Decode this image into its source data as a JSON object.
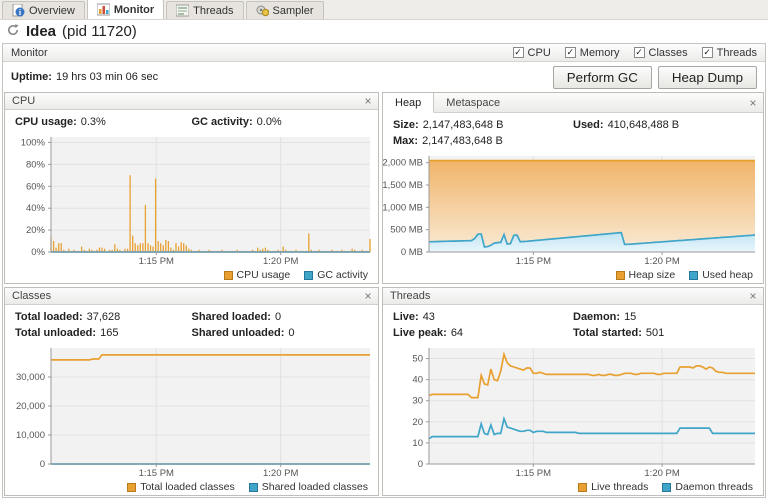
{
  "glyphs": {
    "close": "×",
    "check": "✓"
  },
  "tabs": [
    {
      "label": "Overview",
      "active": false
    },
    {
      "label": "Monitor",
      "active": true
    },
    {
      "label": "Threads",
      "active": false
    },
    {
      "label": "Sampler",
      "active": false
    }
  ],
  "title": {
    "name": "Idea",
    "pid": "(pid 11720)"
  },
  "section": {
    "title": "Monitor",
    "checkboxes": [
      {
        "label": "CPU",
        "checked": true
      },
      {
        "label": "Memory",
        "checked": true
      },
      {
        "label": "Classes",
        "checked": true
      },
      {
        "label": "Threads",
        "checked": true
      }
    ]
  },
  "uptime": {
    "label": "Uptime:",
    "value": "19 hrs 03 min 06 sec"
  },
  "buttons": {
    "perform_gc": "Perform GC",
    "heap_dump": "Heap Dump"
  },
  "colors": {
    "orange": "#E8A030",
    "orange_border": "#B77A1E",
    "blue": "#3FA5C9",
    "blue_border": "#27769B"
  },
  "panels": {
    "cpu": {
      "title": "CPU",
      "stats": [
        {
          "label": "CPU usage:",
          "value": "0.3%"
        },
        {
          "label": "GC activity:",
          "value": "0.0%"
        }
      ],
      "chart": {
        "type": "bar",
        "ylim": [
          0,
          105
        ],
        "yticks": [
          {
            "v": 0,
            "label": "0%"
          },
          {
            "v": 20,
            "label": "20%"
          },
          {
            "v": 40,
            "label": "40%"
          },
          {
            "v": 60,
            "label": "60%"
          },
          {
            "v": 80,
            "label": "80%"
          },
          {
            "v": 100,
            "label": "100%"
          }
        ],
        "xticks": [
          {
            "pos": 0.33,
            "label": "1:15 PM"
          },
          {
            "pos": 0.72,
            "label": "1:20 PM"
          }
        ],
        "series": [
          {
            "name": "CPU usage",
            "type": "bars",
            "color": "#E8A030",
            "values": [
              14,
              10,
              4,
              8,
              8,
              2,
              1,
              3,
              1,
              2,
              1,
              1,
              5,
              2,
              1,
              3,
              2,
              1,
              2,
              4,
              4,
              3,
              1,
              2,
              2,
              7,
              3,
              2,
              1,
              3,
              3,
              70,
              15,
              8,
              6,
              8,
              8,
              43,
              8,
              6,
              5,
              67,
              10,
              8,
              6,
              11,
              10,
              4,
              2,
              8,
              5,
              9,
              8,
              6,
              3,
              2,
              1,
              1,
              2,
              1,
              1,
              1,
              2,
              1,
              1,
              1,
              1,
              2,
              1,
              1,
              1,
              1,
              1,
              2,
              1,
              1,
              1,
              1,
              1,
              2,
              1,
              4,
              2,
              3,
              4,
              2,
              1,
              1,
              1,
              2,
              1,
              5,
              2,
              1,
              1,
              1,
              2,
              1,
              1,
              1,
              1,
              17,
              2,
              1,
              1,
              2,
              1,
              1,
              1,
              1,
              2,
              1,
              1,
              1,
              2,
              1,
              1,
              1,
              3,
              2,
              1,
              1,
              2,
              1,
              1,
              12
            ]
          },
          {
            "name": "GC activity",
            "type": "line",
            "color": "#3FA5C9",
            "const_value": 0,
            "n": 2
          }
        ],
        "legend": [
          {
            "label": "CPU usage",
            "color": "#E8A030",
            "border": "#B77A1E"
          },
          {
            "label": "GC activity",
            "color": "#3FA5C9",
            "border": "#27769B"
          }
        ]
      }
    },
    "heap": {
      "tabs": [
        "Heap",
        "Metaspace"
      ],
      "stats": [
        {
          "label": "Size:",
          "value": "2,147,483,648 B"
        },
        {
          "label": "Used:",
          "value": "410,648,488 B"
        },
        {
          "label": "Max:",
          "value": "2,147,483,648 B"
        },
        {
          "label": "",
          "value": ""
        }
      ],
      "chart": {
        "type": "area",
        "ylim": [
          0,
          2150
        ],
        "yticks": [
          {
            "v": 0,
            "label": "0 MB"
          },
          {
            "v": 500,
            "label": "500 MB"
          },
          {
            "v": 1000,
            "label": "1,000 MB"
          },
          {
            "v": 1500,
            "label": "1,500 MB"
          },
          {
            "v": 2000,
            "label": "2,000 MB"
          }
        ],
        "xticks": [
          {
            "pos": 0.32,
            "label": "1:15 PM"
          },
          {
            "pos": 0.715,
            "label": "1:20 PM"
          }
        ],
        "series": [
          {
            "name": "Heap size",
            "type": "area",
            "color": "#E8A030",
            "fill": [
              "#F0B469",
              "#FAEBD7"
            ],
            "const_value": 2048,
            "n": 2
          },
          {
            "name": "Used heap",
            "type": "area",
            "color": "#3FA5C9",
            "fill": [
              "#C2E4F2",
              "#EAF6FC"
            ],
            "values": [
              228,
              231,
              233,
              235,
              237,
              239,
              241,
              243,
              245,
              247,
              249,
              251,
              253,
              256,
              300,
              398,
              400,
              112,
              120,
              150,
              200,
              210,
              215,
              390,
              180,
              188,
              375,
              378,
              230,
              235,
              240,
              247,
              254,
              260,
              267,
              274,
              280,
              287,
              294,
              300,
              307,
              314,
              320,
              327,
              334,
              340,
              347,
              354,
              360,
              367,
              374,
              380,
              387,
              394,
              400,
              407,
              414,
              420,
              427,
              433,
              170,
              172,
              177,
              182,
              188,
              193,
              198,
              204,
              209,
              214,
              220,
              225,
              230,
              236,
              241,
              246,
              252,
              257,
              262,
              268,
              273,
              278,
              284,
              289,
              294,
              300,
              305,
              310,
              316,
              321,
              326,
              332,
              337,
              342,
              348,
              353,
              358,
              364,
              369,
              374,
              380
            ]
          }
        ],
        "legend": [
          {
            "label": "Heap size",
            "color": "#E8A030",
            "border": "#B77A1E"
          },
          {
            "label": "Used heap",
            "color": "#3FA5C9",
            "border": "#27769B"
          }
        ]
      }
    },
    "classes": {
      "title": "Classes",
      "stats": [
        {
          "label": "Total loaded:",
          "value": "37,628"
        },
        {
          "label": "Shared loaded:",
          "value": "0"
        },
        {
          "label": "Total unloaded:",
          "value": "165"
        },
        {
          "label": "Shared unloaded:",
          "value": "0"
        }
      ],
      "chart": {
        "type": "line",
        "ylim": [
          0,
          40000
        ],
        "yticks": [
          {
            "v": 0,
            "label": "0"
          },
          {
            "v": 10000,
            "label": "10,000"
          },
          {
            "v": 20000,
            "label": "20,000"
          },
          {
            "v": 30000,
            "label": "30,000"
          }
        ],
        "xticks": [
          {
            "pos": 0.33,
            "label": "1:15 PM"
          },
          {
            "pos": 0.72,
            "label": "1:20 PM"
          }
        ],
        "series": [
          {
            "name": "Total loaded classes",
            "type": "line",
            "color": "#E8A030",
            "segments": [
              [
                13,
                35900
              ],
              [
                3,
                36200
              ],
              [
                85,
                37628
              ]
            ]
          },
          {
            "name": "Shared loaded classes",
            "type": "line",
            "color": "#3FA5C9",
            "const_value": 0,
            "n": 2
          }
        ],
        "legend": [
          {
            "label": "Total loaded classes",
            "color": "#E8A030",
            "border": "#B77A1E"
          },
          {
            "label": "Shared loaded classes",
            "color": "#3FA5C9",
            "border": "#27769B"
          }
        ]
      }
    },
    "threads": {
      "title": "Threads",
      "stats": [
        {
          "label": "Live:",
          "value": "43"
        },
        {
          "label": "Daemon:",
          "value": "15"
        },
        {
          "label": "Live peak:",
          "value": "64"
        },
        {
          "label": "Total started:",
          "value": "501"
        }
      ],
      "chart": {
        "type": "line",
        "ylim": [
          0,
          55
        ],
        "yticks": [
          {
            "v": 0,
            "label": "0"
          },
          {
            "v": 10,
            "label": "10"
          },
          {
            "v": 20,
            "label": "20"
          },
          {
            "v": 30,
            "label": "30"
          },
          {
            "v": 40,
            "label": "40"
          },
          {
            "v": 50,
            "label": "50"
          }
        ],
        "xticks": [
          {
            "pos": 0.32,
            "label": "1:15 PM"
          },
          {
            "pos": 0.715,
            "label": "1:20 PM"
          }
        ],
        "series": [
          {
            "name": "Live threads",
            "type": "line",
            "color": "#E8A030",
            "values": [
              32.5,
              33,
              33,
              33,
              33,
              33,
              33,
              33,
              33,
              33,
              33,
              33,
              33,
              31.5,
              31.5,
              31.5,
              42,
              38,
              37.5,
              45,
              40,
              39.5,
              44,
              52,
              48,
              46.5,
              46,
              45.5,
              45,
              44.5,
              45.5,
              45.5,
              43,
              43,
              43.5,
              43,
              42.5,
              42.5,
              42.5,
              42.5,
              42.5,
              42.5,
              42.5,
              42.5,
              42.5,
              42.5,
              42.5,
              42.5,
              42.5,
              42.5,
              42,
              42,
              42.5,
              42,
              42,
              42.5,
              42.5,
              42,
              42,
              42.5,
              43,
              43,
              43,
              42.5,
              42.5,
              43,
              43,
              43,
              43,
              43,
              42.5,
              42.5,
              43,
              43,
              43,
              43,
              43,
              46,
              46,
              46,
              46,
              45.5,
              46.5,
              46.5,
              46,
              45,
              46,
              45.5,
              44,
              43.5,
              43.5,
              43,
              43,
              43,
              43,
              43,
              43,
              43,
              43,
              43,
              43
            ]
          },
          {
            "name": "Daemon threads",
            "type": "line",
            "color": "#3FA5C9",
            "values": [
              12,
              13,
              13,
              13,
              13,
              13,
              13,
              13,
              13,
              13,
              13,
              13,
              13,
              13,
              13,
              13,
              19,
              14.5,
              14,
              18.5,
              14,
              14.5,
              14.5,
              21.5,
              17.5,
              17,
              16.5,
              16,
              15.5,
              15.5,
              16,
              16,
              15,
              15.5,
              15.5,
              15.5,
              15,
              15,
              15,
              15,
              15,
              15,
              15,
              15,
              15,
              15,
              14.5,
              14.5,
              14.5,
              14.5,
              14.5,
              14.5,
              14.5,
              14.5,
              14.5,
              14.5,
              14.5,
              14.5,
              14.5,
              14.5,
              14.5,
              14.5,
              14.5,
              14.5,
              14.5,
              14.5,
              14.5,
              14.5,
              14.5,
              14.5,
              14.5,
              14.5,
              14.5,
              14.5,
              14.5,
              14.5,
              14.5,
              17,
              17,
              17,
              17,
              17,
              17,
              17,
              17,
              17,
              17,
              14.5,
              14.5,
              14.5,
              14.5,
              14.5,
              14.5,
              14.5,
              14.5,
              14.5,
              14.5,
              14.5,
              14.5,
              14.5,
              14.5
            ]
          }
        ],
        "legend": [
          {
            "label": "Live threads",
            "color": "#E8A030",
            "border": "#B77A1E"
          },
          {
            "label": "Daemon threads",
            "color": "#3FA5C9",
            "border": "#27769B"
          }
        ]
      }
    }
  }
}
